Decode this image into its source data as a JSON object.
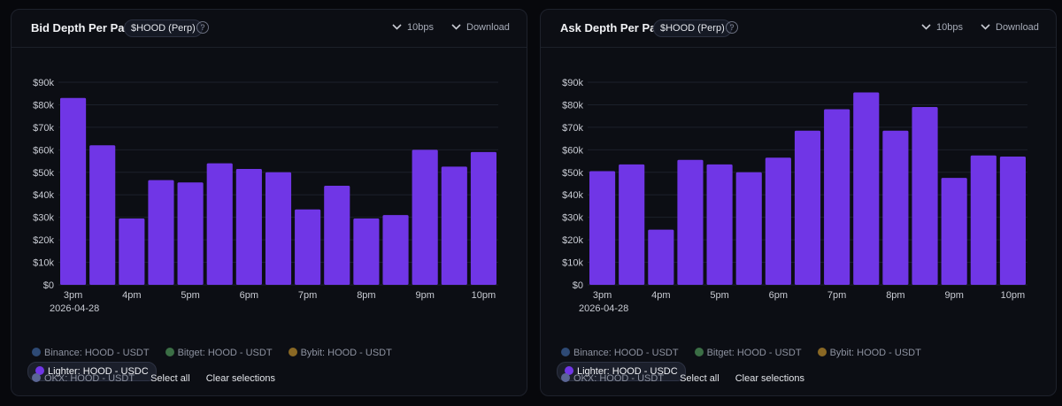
{
  "colors": {
    "bar": "#7036e6",
    "grid": "#1c202b",
    "axis_text": "#c9ccd4",
    "binance": "#2e4a75",
    "bitget": "#3b6e45",
    "bybit": "#8a6824",
    "lighter": "#7036e6",
    "okx": "#5a6594"
  },
  "header_icons": {
    "dropdown": "chevron-down-icon",
    "help": "question-circle-icon"
  },
  "panels": [
    {
      "title": "Bid Depth Per Pair",
      "ticker": "$HOOD (Perp)",
      "help": "?",
      "bps_label": "10bps",
      "download_label": "Download",
      "legend": {
        "items": [
          "Binance: HOOD - USDT",
          "Bitget: HOOD - USDT",
          "Bybit: HOOD - USDT",
          "Lighter: HOOD - USDC",
          "OKX: HOOD - USDT"
        ],
        "active_index": 3,
        "select_all": "Select all",
        "clear": "Clear selections"
      }
    },
    {
      "title": "Ask Depth Per Pair",
      "ticker": "$HOOD (Perp)",
      "help": "?",
      "bps_label": "10bps",
      "download_label": "Download",
      "legend": {
        "items": [
          "Binance: HOOD - USDT",
          "Bitget: HOOD - USDT",
          "Bybit: HOOD - USDT",
          "Lighter: HOOD - USDC",
          "OKX: HOOD - USDT"
        ],
        "active_index": 3,
        "select_all": "Select all",
        "clear": "Clear selections"
      }
    }
  ],
  "chart_data": [
    {
      "type": "bar",
      "title": "Bid Depth Per Pair",
      "xlabel": "",
      "ylabel": "",
      "x_ticks": [
        "3pm",
        "4pm",
        "5pm",
        "6pm",
        "7pm",
        "8pm",
        "9pm",
        "10pm"
      ],
      "x_date_label": "2026-04-28",
      "y_ticks": [
        "$0",
        "$10k",
        "$20k",
        "$30k",
        "$40k",
        "$50k",
        "$60k",
        "$70k",
        "$80k",
        "$90k"
      ],
      "ylim": [
        0,
        90000
      ],
      "grid": true,
      "series": [
        {
          "name": "Lighter: HOOD - USDC",
          "values": [
            83000,
            62000,
            29500,
            46500,
            45500,
            54000,
            51500,
            50000,
            33500,
            44000,
            29500,
            31000,
            60000,
            52500,
            59000
          ]
        }
      ]
    },
    {
      "type": "bar",
      "title": "Ask Depth Per Pair",
      "xlabel": "",
      "ylabel": "",
      "x_ticks": [
        "3pm",
        "4pm",
        "5pm",
        "6pm",
        "7pm",
        "8pm",
        "9pm",
        "10pm"
      ],
      "x_date_label": "2026-04-28",
      "y_ticks": [
        "$0",
        "$10k",
        "$20k",
        "$30k",
        "$40k",
        "$50k",
        "$60k",
        "$70k",
        "$80k",
        "$90k"
      ],
      "ylim": [
        0,
        90000
      ],
      "grid": true,
      "series": [
        {
          "name": "Lighter: HOOD - USDC",
          "values": [
            50500,
            53500,
            24500,
            55500,
            53500,
            50000,
            56500,
            68500,
            78000,
            85500,
            68500,
            79000,
            47500,
            57500,
            57000
          ]
        }
      ]
    }
  ]
}
